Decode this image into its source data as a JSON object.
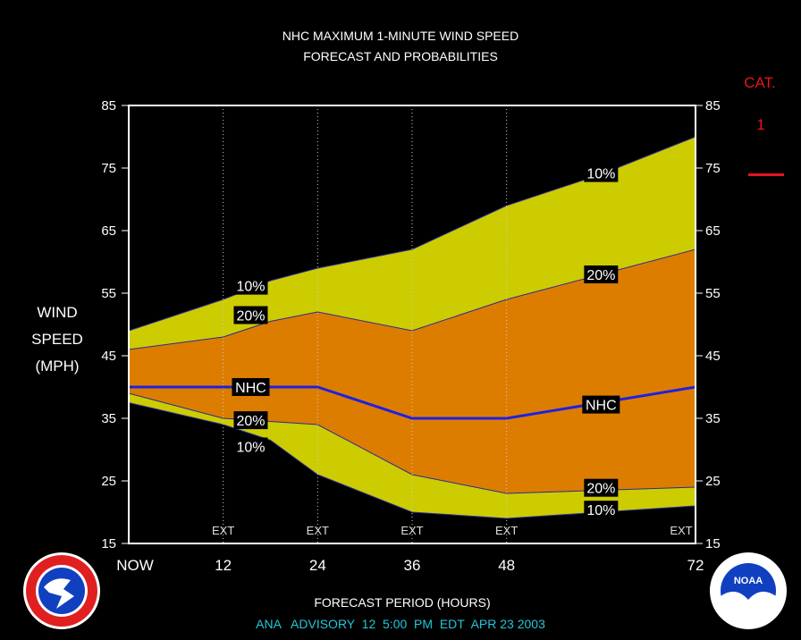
{
  "title_line1": "NHC MAXIMUM 1-MINUTE WIND SPEED",
  "title_line2": "FORECAST AND PROBABILITIES",
  "ylabel_lines": [
    "WIND",
    "SPEED",
    "(MPH)"
  ],
  "xlabel": "FORECAST PERIOD (HOURS)",
  "footer": "ANA   ADVISORY  12  5:00  PM  EDT  APR 23 2003",
  "category": {
    "label": "CAT.",
    "value": "1",
    "color": "#e8141c"
  },
  "colors": {
    "outer_band": "#cccc00",
    "inner_band": "#dd7d00",
    "nhc_line": "#2020e0",
    "frame": "#ffffff",
    "ext_line": "#cccccc"
  },
  "chart_data": {
    "type": "area",
    "x": [
      0,
      12,
      18,
      24,
      36,
      48,
      60,
      72
    ],
    "xlim": [
      0,
      72
    ],
    "ylim": [
      15,
      85
    ],
    "x_ticks": [
      0,
      12,
      24,
      36,
      48,
      72
    ],
    "x_tick_labels": [
      "NOW",
      "12",
      "24",
      "36",
      "48",
      "72"
    ],
    "y_ticks": [
      15,
      25,
      35,
      45,
      55,
      65,
      75,
      85
    ],
    "ext_x": [
      12,
      24,
      36,
      48,
      72
    ],
    "ext_label": "EXT",
    "series": [
      {
        "name": "10%",
        "role": "upper",
        "values": [
          49,
          54,
          57,
          59,
          62,
          69,
          74,
          80
        ]
      },
      {
        "name": "20%",
        "role": "upper",
        "values": [
          46,
          48,
          50.5,
          52,
          49,
          54,
          58,
          62
        ]
      },
      {
        "name": "NHC",
        "role": "center",
        "values": [
          40,
          40,
          40,
          40,
          35,
          35,
          37.5,
          40
        ]
      },
      {
        "name": "20%",
        "role": "lower",
        "values": [
          39,
          35,
          34.5,
          34,
          26,
          23,
          23.5,
          24
        ]
      },
      {
        "name": "10%",
        "role": "lower",
        "values": [
          37.5,
          34,
          31.5,
          26,
          20,
          19,
          20,
          21
        ]
      }
    ],
    "labels": [
      {
        "text": "10%",
        "x": 15.5,
        "y": 56.2
      },
      {
        "text": "20%",
        "x": 15.5,
        "y": 51.5
      },
      {
        "text": "NHC",
        "x": 15.5,
        "y": 40
      },
      {
        "text": "20%",
        "x": 15.5,
        "y": 34.7
      },
      {
        "text": "10%",
        "x": 15.5,
        "y": 30.5
      },
      {
        "text": "10%",
        "x": 60,
        "y": 74.2
      },
      {
        "text": "20%",
        "x": 60,
        "y": 58
      },
      {
        "text": "NHC",
        "x": 60,
        "y": 37.2
      },
      {
        "text": "20%",
        "x": 60,
        "y": 23.9
      },
      {
        "text": "10%",
        "x": 60,
        "y": 20.4
      }
    ]
  }
}
